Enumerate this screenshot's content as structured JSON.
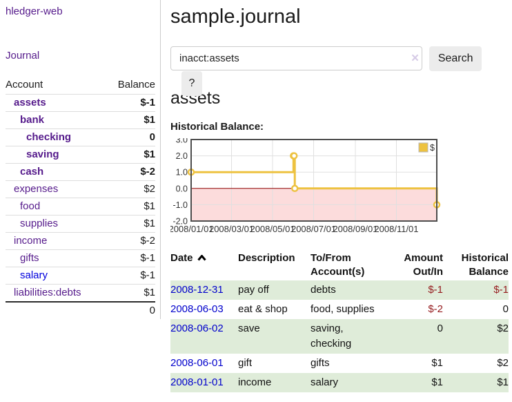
{
  "sidebar": {
    "brand": "hledger-web",
    "nav": {
      "journal_label": "Journal"
    },
    "accounts_table": {
      "headers": {
        "account": "Account",
        "balance": "Balance"
      },
      "rows": [
        {
          "name": "assets",
          "balance": "$-1"
        },
        {
          "name": "bank",
          "balance": "$1"
        },
        {
          "name": "checking",
          "balance": "0"
        },
        {
          "name": "saving",
          "balance": "$1"
        },
        {
          "name": "cash",
          "balance": "$-2"
        },
        {
          "name": "expenses",
          "balance": "$2"
        },
        {
          "name": "food",
          "balance": "$1"
        },
        {
          "name": "supplies",
          "balance": "$1"
        },
        {
          "name": "income",
          "balance": "$-2"
        },
        {
          "name": "gifts",
          "balance": "$-1"
        },
        {
          "name": "salary",
          "balance": "$-1"
        },
        {
          "name": "liabilities:debts",
          "balance": "$1"
        }
      ],
      "total": "0"
    }
  },
  "header": {
    "title": "sample.journal"
  },
  "search": {
    "value": "inacct:assets",
    "clear_icon": "×",
    "button_label": "Search",
    "help_label": "?"
  },
  "account_page": {
    "title": "assets",
    "chart_label": "Historical Balance:"
  },
  "chart_data": {
    "type": "line",
    "step": true,
    "title": "Historical Balance:",
    "x_range": [
      "2008-01-01",
      "2008-12-31"
    ],
    "ylim": [
      -2,
      3
    ],
    "yticks": [
      {
        "v": 3,
        "label": "3.0"
      },
      {
        "v": 2,
        "label": "2.0"
      },
      {
        "v": 1,
        "label": "1.0"
      },
      {
        "v": 0,
        "label": "0.0"
      },
      {
        "v": -1,
        "label": "-1.0"
      },
      {
        "v": -2,
        "label": "-2.0"
      }
    ],
    "xticks": [
      {
        "date": "2008-01-01",
        "label": "2008/01/01"
      },
      {
        "date": "2008-03-01",
        "label": "2008/03/01"
      },
      {
        "date": "2008-05-01",
        "label": "2008/05/01"
      },
      {
        "date": "2008-07-01",
        "label": "2008/07/01"
      },
      {
        "date": "2008-09-01",
        "label": "2008/09/01"
      },
      {
        "date": "2008-11-01",
        "label": "2008/11/01"
      }
    ],
    "series": [
      {
        "name": "$",
        "color": "#EDC240",
        "points": [
          {
            "date": "2008-01-01",
            "value": 1
          },
          {
            "date": "2008-06-01",
            "value": 2
          },
          {
            "date": "2008-06-02",
            "value": 2
          },
          {
            "date": "2008-06-03",
            "value": 0
          },
          {
            "date": "2008-12-31",
            "value": -1
          }
        ]
      }
    ],
    "legend_position": "top-right",
    "grid": true,
    "zero_line_color": "#8b0000",
    "negative_region_color": "#fcdcdc",
    "plot_border_color": "#4d4d4d"
  },
  "register": {
    "headers": [
      {
        "line1": "Date",
        "line2": ""
      },
      {
        "line1": "Description",
        "line2": ""
      },
      {
        "line1": "To/From",
        "line2": "Account(s)"
      },
      {
        "line1": "Amount",
        "line2": "Out/In"
      },
      {
        "line1": "Historical",
        "line2": "Balance"
      }
    ],
    "rows": [
      {
        "date": "2008-12-31",
        "description": "pay off",
        "accounts": "debts",
        "amount": "$-1",
        "balance": "$-1"
      },
      {
        "date": "2008-06-03",
        "description": "eat & shop",
        "accounts": "food, supplies",
        "amount": "$-2",
        "balance": "0"
      },
      {
        "date": "2008-06-02",
        "description": "save",
        "accounts": "saving, checking",
        "amount": "0",
        "balance": "$2"
      },
      {
        "date": "2008-06-01",
        "description": "gift",
        "accounts": "gifts",
        "amount": "$1",
        "balance": "$2"
      },
      {
        "date": "2008-01-01",
        "description": "income",
        "accounts": "salary",
        "amount": "$1",
        "balance": "$1"
      }
    ]
  }
}
